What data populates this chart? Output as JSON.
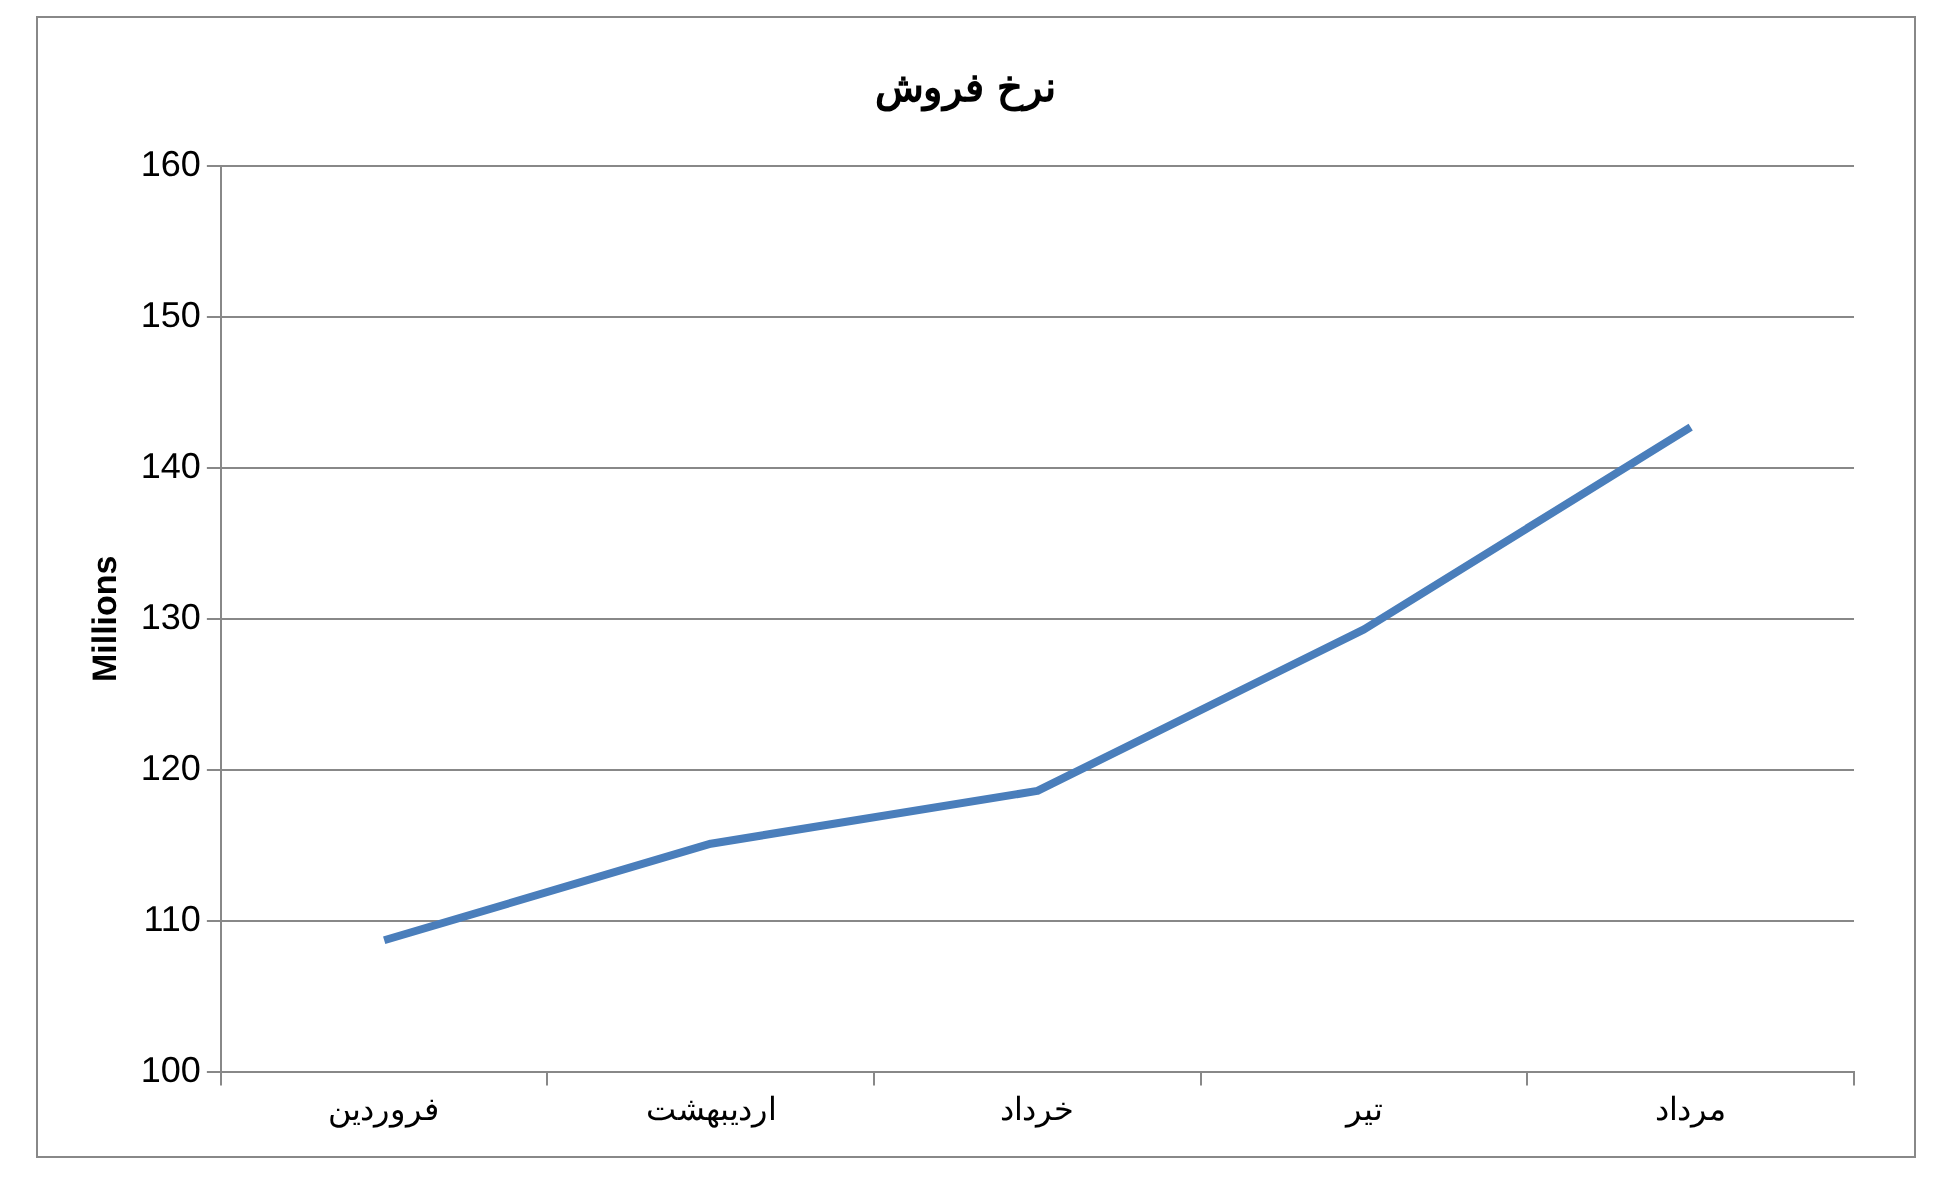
{
  "chart_data": {
    "type": "line",
    "title": "نرخ فروش",
    "ylabel": "Millions",
    "categories": [
      "فروردین",
      "اردیبهشت",
      "خرداد",
      "تیر",
      "مرداد"
    ],
    "series": [
      {
        "color": "#4a7ebb",
        "values": [
          108.7,
          115.1,
          118.6,
          129.3,
          142.7
        ]
      }
    ],
    "ylim": [
      100,
      160
    ],
    "yticks": [
      100,
      110,
      120,
      130,
      140,
      150,
      160
    ],
    "grid": "y",
    "legend": false
  }
}
